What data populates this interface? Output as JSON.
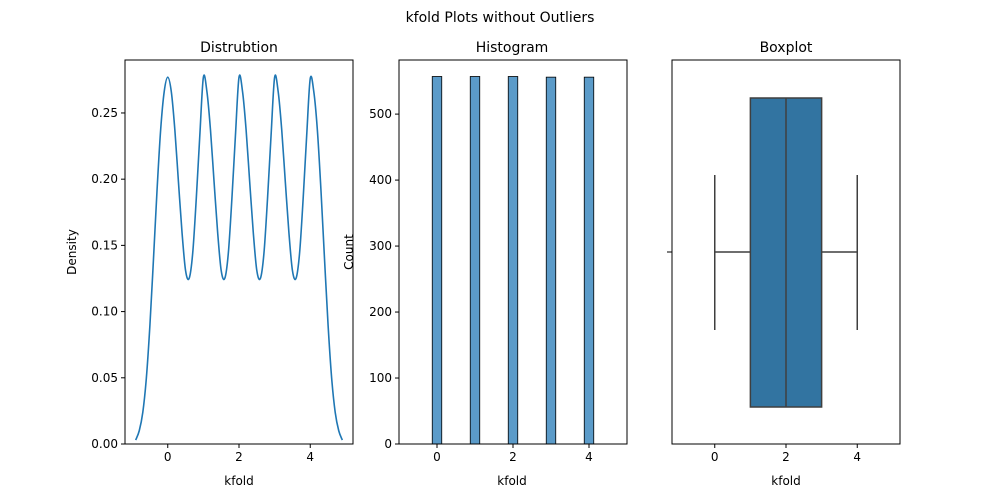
{
  "figure": {
    "title": "kfold Plots without Outliers"
  },
  "colors": {
    "primary": "#1f77b4",
    "bar": "#5b9bc9",
    "box": "#3274a1",
    "line": "#3f3f3f"
  },
  "chart_data": [
    {
      "type": "line",
      "title": "Distrubtion",
      "xlabel": "kfold",
      "ylabel": "Density",
      "xlim": [
        -1.2,
        5.2
      ],
      "ylim": [
        0,
        0.29
      ],
      "xticks": [
        0,
        2,
        4
      ],
      "yticks": [
        0.0,
        0.05,
        0.1,
        0.15,
        0.2,
        0.25
      ],
      "yticklabels": [
        "0.00",
        "0.05",
        "0.10",
        "0.15",
        "0.20",
        "0.25"
      ],
      "x": [
        -0.9,
        -0.8,
        -0.7,
        -0.6,
        -0.5,
        -0.4,
        -0.3,
        -0.2,
        -0.1,
        0.0,
        0.1,
        0.2,
        0.3,
        0.4,
        0.5,
        0.6,
        0.7,
        0.8,
        0.9,
        1.0,
        1.1,
        1.2,
        1.3,
        1.4,
        1.5,
        1.6,
        1.7,
        1.8,
        1.9,
        2.0,
        2.1,
        2.2,
        2.3,
        2.4,
        2.5,
        2.6,
        2.7,
        2.8,
        2.9,
        3.0,
        3.1,
        3.2,
        3.3,
        3.4,
        3.5,
        3.6,
        3.7,
        3.8,
        3.9,
        4.0,
        4.1,
        4.2,
        4.3,
        4.4,
        4.5,
        4.6,
        4.7,
        4.8,
        4.9
      ],
      "series": [
        {
          "values": [
            0.003,
            0.01,
            0.024,
            0.05,
            0.09,
            0.14,
            0.192,
            0.237,
            0.266,
            0.277,
            0.266,
            0.237,
            0.198,
            0.16,
            0.131,
            0.125,
            0.144,
            0.185,
            0.233,
            0.277,
            0.266,
            0.237,
            0.198,
            0.16,
            0.131,
            0.125,
            0.144,
            0.185,
            0.233,
            0.277,
            0.266,
            0.237,
            0.198,
            0.16,
            0.131,
            0.125,
            0.144,
            0.185,
            0.233,
            0.277,
            0.266,
            0.237,
            0.198,
            0.16,
            0.131,
            0.125,
            0.144,
            0.185,
            0.233,
            0.276,
            0.266,
            0.237,
            0.192,
            0.14,
            0.09,
            0.05,
            0.024,
            0.01,
            0.003
          ]
        }
      ]
    },
    {
      "type": "bar",
      "title": "Histogram",
      "xlabel": "kfold",
      "ylabel": "Count",
      "xlim": [
        -1.0,
        5.0
      ],
      "ylim": [
        0,
        582
      ],
      "xticks": [
        0,
        2,
        4
      ],
      "yticks": [
        0,
        100,
        200,
        300,
        400,
        500
      ],
      "bar_width": 0.25,
      "x": [
        0,
        1,
        2,
        3,
        4
      ],
      "values": [
        557,
        557,
        557,
        556,
        556
      ]
    },
    {
      "type": "box",
      "title": "Boxplot",
      "xlabel": "kfold",
      "xlim": [
        -1.2,
        5.2
      ],
      "xticks": [
        0,
        2,
        4
      ],
      "min": 0,
      "q1": 1,
      "median": 2,
      "q3": 3,
      "max": 4
    }
  ]
}
